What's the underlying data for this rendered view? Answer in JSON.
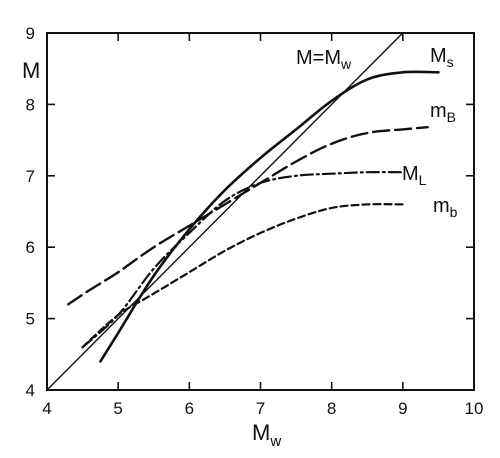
{
  "chart_data": {
    "type": "line",
    "xlabel": "Mw",
    "ylabel": "M",
    "xlim": [
      4,
      10
    ],
    "ylim": [
      4,
      9
    ],
    "x_ticks": [
      4,
      5,
      6,
      7,
      8,
      9,
      10
    ],
    "y_ticks": [
      4,
      5,
      6,
      7,
      8,
      9
    ],
    "grid": false,
    "series": [
      {
        "name": "M=Mw",
        "style": "solid-thin",
        "points": [
          [
            4,
            4
          ],
          [
            9,
            9
          ]
        ]
      },
      {
        "name": "Ms",
        "style": "solid-thick",
        "points": [
          [
            4.75,
            4.4
          ],
          [
            5.0,
            4.8
          ],
          [
            5.5,
            5.6
          ],
          [
            6.0,
            6.25
          ],
          [
            6.5,
            6.8
          ],
          [
            7.0,
            7.25
          ],
          [
            7.5,
            7.65
          ],
          [
            8.0,
            8.05
          ],
          [
            8.5,
            8.35
          ],
          [
            9.0,
            8.45
          ],
          [
            9.5,
            8.45
          ]
        ]
      },
      {
        "name": "mB",
        "style": "long-dash",
        "points": [
          [
            4.3,
            5.2
          ],
          [
            4.6,
            5.4
          ],
          [
            5.0,
            5.65
          ],
          [
            5.5,
            6.0
          ],
          [
            6.0,
            6.3
          ],
          [
            6.5,
            6.6
          ],
          [
            7.0,
            6.9
          ],
          [
            7.5,
            7.2
          ],
          [
            8.0,
            7.45
          ],
          [
            8.5,
            7.6
          ],
          [
            9.0,
            7.65
          ],
          [
            9.35,
            7.68
          ]
        ]
      },
      {
        "name": "ML",
        "style": "dash-dot",
        "points": [
          [
            4.5,
            4.6
          ],
          [
            5.0,
            5.05
          ],
          [
            5.5,
            5.7
          ],
          [
            6.0,
            6.2
          ],
          [
            6.5,
            6.65
          ],
          [
            7.0,
            6.9
          ],
          [
            7.5,
            7.0
          ],
          [
            8.0,
            7.03
          ],
          [
            8.5,
            7.05
          ],
          [
            9.0,
            7.05
          ]
        ]
      },
      {
        "name": "mb",
        "style": "short-dash",
        "points": [
          [
            4.5,
            4.6
          ],
          [
            5.0,
            5.05
          ],
          [
            5.5,
            5.35
          ],
          [
            6.0,
            5.65
          ],
          [
            6.5,
            5.95
          ],
          [
            7.0,
            6.2
          ],
          [
            7.5,
            6.4
          ],
          [
            8.0,
            6.55
          ],
          [
            8.5,
            6.6
          ],
          [
            9.0,
            6.6
          ]
        ]
      }
    ],
    "labels": {
      "identity": "M=M",
      "identity_sub": "w",
      "ms": "M",
      "ms_sub": "s",
      "mb_upper": "m",
      "mb_upper_sub": "B",
      "ml": "M",
      "ml_sub": "L",
      "mb_lower": "m",
      "mb_lower_sub": "b"
    },
    "xlabel_main": "M",
    "xlabel_sub": "w"
  }
}
